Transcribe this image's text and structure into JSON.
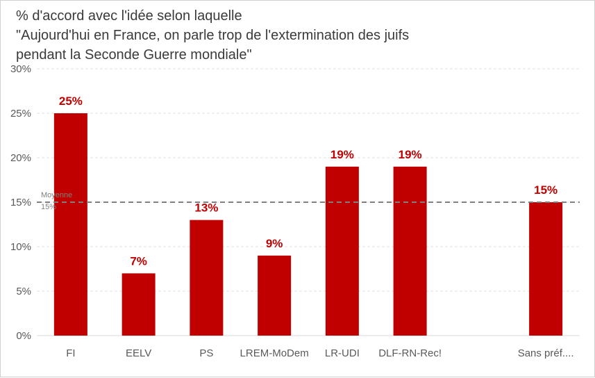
{
  "chart_data": {
    "type": "bar",
    "title_lines": [
      "% d'accord avec l'idée selon laquelle",
      "\"Aujourd'hui en France, on parle trop de l'extermination des juifs",
      "pendant la Seconde Guerre mondiale\""
    ],
    "categories": [
      "FI",
      "EELV",
      "PS",
      "LREM-MoDem",
      "LR-UDI",
      "DLF-RN-Rec!",
      "",
      "Sans préf...."
    ],
    "values": [
      25,
      7,
      13,
      9,
      19,
      19,
      null,
      15
    ],
    "data_labels": [
      "25%",
      "7%",
      "13%",
      "9%",
      "19%",
      "19%",
      "",
      "15%"
    ],
    "ylim": [
      0,
      30
    ],
    "yticks": [
      0,
      5,
      10,
      15,
      20,
      25,
      30
    ],
    "ytick_labels": [
      "0%",
      "5%",
      "10%",
      "15%",
      "20%",
      "25%",
      "30%"
    ],
    "grid": true,
    "average": {
      "value": 15,
      "label_line1": "Moyenne",
      "label_line2": "15%"
    },
    "bar_color": "#c00000",
    "label_color": "#c00000"
  }
}
